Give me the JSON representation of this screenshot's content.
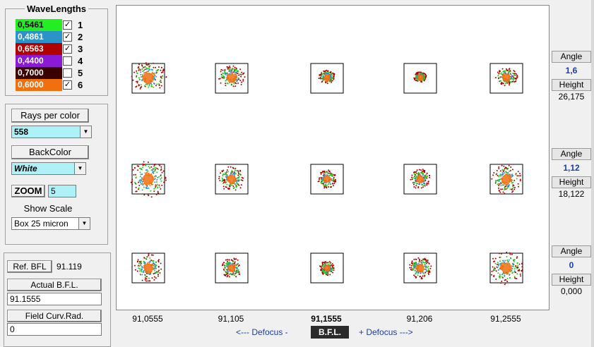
{
  "wavelengths": {
    "title": "WaveLengths",
    "items": [
      {
        "value": "0,5461",
        "color": "#22ee22",
        "text_color": "#000000",
        "checked": true,
        "num": "1"
      },
      {
        "value": "0,4861",
        "color": "#2a93c8",
        "text_color": "#ffffff",
        "checked": true,
        "num": "2"
      },
      {
        "value": "0,6563",
        "color": "#b00000",
        "text_color": "#ffffff",
        "checked": true,
        "num": "3"
      },
      {
        "value": "0,4400",
        "color": "#8a1ad6",
        "text_color": "#ffffff",
        "checked": false,
        "num": "4"
      },
      {
        "value": "0,7000",
        "color": "#3a0000",
        "text_color": "#ffffff",
        "checked": false,
        "num": "5"
      },
      {
        "value": "0,6000",
        "color": "#f07010",
        "text_color": "#ffffff",
        "checked": true,
        "num": "6"
      }
    ]
  },
  "controls": {
    "rays_label": "Rays per color",
    "rays_value": "558",
    "backcolor_label": "BackColor",
    "backcolor_value": "White",
    "zoom_label": "ZOOM",
    "zoom_value": "5",
    "show_scale_label": "Show Scale",
    "scale_value": "Box 25 micron"
  },
  "bfl": {
    "ref_label": "Ref.  BFL",
    "ref_value": "91.119",
    "actual_label": "Actual  B.F.L.",
    "actual_value": "91.1555",
    "curv_label": "Field Curv.Rad.",
    "curv_value": "0"
  },
  "plot": {
    "columns": [
      "91,0555",
      "91,105",
      "91,1555",
      "91,206",
      "91,2555"
    ],
    "active_column": 2,
    "defocus_minus": "<---  Defocus  -",
    "bfl_button": "B.F.L.",
    "defocus_plus": "+ Defocus --->"
  },
  "fields": [
    {
      "angle_label": "Angle",
      "angle": "1,6",
      "height_label": "Height",
      "height": "26,175"
    },
    {
      "angle_label": "Angle",
      "angle": "1,12",
      "height_label": "Height",
      "height": "18,122"
    },
    {
      "angle_label": "Angle",
      "angle": "0",
      "height_label": "Height",
      "height": "0,000"
    }
  ],
  "spot_colors": {
    "red": "#b00000",
    "green": "#22cc22",
    "blue": "#2a93c8",
    "orange": "#f07010"
  }
}
